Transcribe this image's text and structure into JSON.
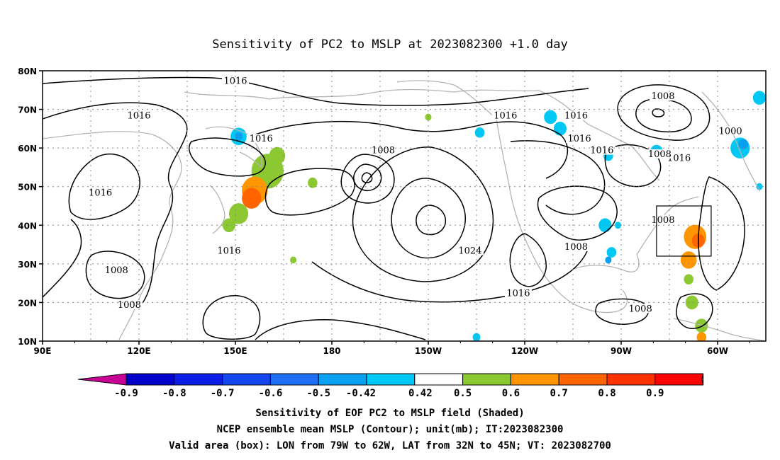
{
  "title": "Sensitivity of PC2 to MSLP at 2023082300 +1.0 day",
  "map": {
    "lon_labels": [
      "90E",
      "120E",
      "150E",
      "180",
      "150W",
      "120W",
      "90W",
      "60W"
    ],
    "lat_labels": [
      "80N",
      "70N",
      "60N",
      "50N",
      "40N",
      "30N",
      "20N",
      "10N"
    ],
    "lon_range": [
      90,
      315
    ],
    "lat_range": [
      10,
      80
    ],
    "valid_box": {
      "lon": [
        281,
        298
      ],
      "lat": [
        32,
        45
      ]
    },
    "contour_labels": [
      {
        "text": "1016",
        "lon": 150,
        "lat": 77
      },
      {
        "text": "1016",
        "lon": 120,
        "lat": 68
      },
      {
        "text": "1016",
        "lon": 108,
        "lat": 48
      },
      {
        "text": "1016",
        "lon": 148,
        "lat": 33
      },
      {
        "text": "1016",
        "lon": 158,
        "lat": 62
      },
      {
        "text": "1016",
        "lon": 234,
        "lat": 68
      },
      {
        "text": "1016",
        "lon": 256,
        "lat": 68
      },
      {
        "text": "1016",
        "lon": 257,
        "lat": 62
      },
      {
        "text": "1016",
        "lon": 264,
        "lat": 59
      },
      {
        "text": "1016",
        "lon": 288,
        "lat": 57
      },
      {
        "text": "1016",
        "lon": 238,
        "lat": 22
      },
      {
        "text": "1008",
        "lon": 196,
        "lat": 59
      },
      {
        "text": "1008",
        "lon": 283,
        "lat": 73
      },
      {
        "text": "1008",
        "lon": 282,
        "lat": 58
      },
      {
        "text": "1008",
        "lon": 283,
        "lat": 41
      },
      {
        "text": "1008",
        "lon": 256,
        "lat": 34
      },
      {
        "text": "1008",
        "lon": 113,
        "lat": 28
      },
      {
        "text": "1008",
        "lon": 117,
        "lat": 19
      },
      {
        "text": "1008",
        "lon": 276,
        "lat": 18
      },
      {
        "text": "1000",
        "lon": 304,
        "lat": 64
      },
      {
        "text": "1024",
        "lon": 223,
        "lat": 33
      }
    ],
    "positive_patches": [
      {
        "lon": 160,
        "lat": 54,
        "r": 5,
        "level": 0.5
      },
      {
        "lon": 156,
        "lat": 49,
        "r": 4,
        "level": 0.6
      },
      {
        "lon": 155,
        "lat": 47,
        "r": 3,
        "level": 0.7
      },
      {
        "lon": 151,
        "lat": 43,
        "r": 3,
        "level": 0.5
      },
      {
        "lon": 163,
        "lat": 58,
        "r": 2.5,
        "level": 0.5
      },
      {
        "lon": 148,
        "lat": 40,
        "r": 2,
        "level": 0.5
      },
      {
        "lon": 174,
        "lat": 51,
        "r": 1.5,
        "level": 0.5
      },
      {
        "lon": 168,
        "lat": 31,
        "r": 1,
        "level": 0.5
      },
      {
        "lon": 293,
        "lat": 37,
        "r": 3.5,
        "level": 0.6
      },
      {
        "lon": 294,
        "lat": 36,
        "r": 2,
        "level": 0.7
      },
      {
        "lon": 291,
        "lat": 31,
        "r": 2.5,
        "level": 0.6
      },
      {
        "lon": 291,
        "lat": 26,
        "r": 1.5,
        "level": 0.5
      },
      {
        "lon": 292,
        "lat": 20,
        "r": 2,
        "level": 0.5
      },
      {
        "lon": 295,
        "lat": 14,
        "r": 2,
        "level": 0.5
      },
      {
        "lon": 295,
        "lat": 11,
        "r": 1.5,
        "level": 0.6
      },
      {
        "lon": 210,
        "lat": 68,
        "r": 1,
        "level": 0.5
      }
    ],
    "negative_patches": [
      {
        "lon": 151,
        "lat": 63,
        "r": 2.5,
        "level": -0.5
      },
      {
        "lon": 151,
        "lat": 63,
        "r": 1.2,
        "level": -0.6
      },
      {
        "lon": 248,
        "lat": 68,
        "r": 2,
        "level": -0.5
      },
      {
        "lon": 251,
        "lat": 65,
        "r": 2,
        "level": -0.5
      },
      {
        "lon": 226,
        "lat": 64,
        "r": 1.5,
        "level": -0.5
      },
      {
        "lon": 266,
        "lat": 58,
        "r": 1.5,
        "level": -0.5
      },
      {
        "lon": 281,
        "lat": 59,
        "r": 2,
        "level": -0.5
      },
      {
        "lon": 307,
        "lat": 60,
        "r": 3,
        "level": -0.5
      },
      {
        "lon": 308,
        "lat": 61,
        "r": 1.5,
        "level": -0.6
      },
      {
        "lon": 313,
        "lat": 73,
        "r": 2,
        "level": -0.5
      },
      {
        "lon": 313,
        "lat": 50,
        "r": 1,
        "level": -0.5
      },
      {
        "lon": 265,
        "lat": 40,
        "r": 2,
        "level": -0.5
      },
      {
        "lon": 269,
        "lat": 40,
        "r": 1,
        "level": -0.5
      },
      {
        "lon": 267,
        "lat": 33,
        "r": 1.5,
        "level": -0.5
      },
      {
        "lon": 266,
        "lat": 31,
        "r": 1,
        "level": -0.6
      },
      {
        "lon": 225,
        "lat": 11,
        "r": 1.2,
        "level": -0.5
      }
    ]
  },
  "colorbar": {
    "labels": [
      "-0.9",
      "-0.8",
      "-0.7",
      "-0.6",
      "-0.5",
      "-0.42",
      "0.42",
      "0.5",
      "0.6",
      "0.7",
      "0.8",
      "0.9"
    ],
    "colors": [
      "#c80096",
      "#0000c8",
      "#0a1ee6",
      "#1446f0",
      "#1e6ef5",
      "#0aa0f0",
      "#00c8f5",
      "#ffffff",
      "#8cc832",
      "#ff9600",
      "#ff6400",
      "#ff3200",
      "#ff0000",
      "#f5a0c8"
    ]
  },
  "caption": {
    "line1": "Sensitivity of EOF PC2 to MSLP field (Shaded)",
    "line2": "NCEP ensemble mean MSLP (Contour); unit(mb); IT:2023082300",
    "line3": "Valid area (box): LON from 79W to 62W, LAT from 32N to 45N; VT: 2023082700"
  }
}
